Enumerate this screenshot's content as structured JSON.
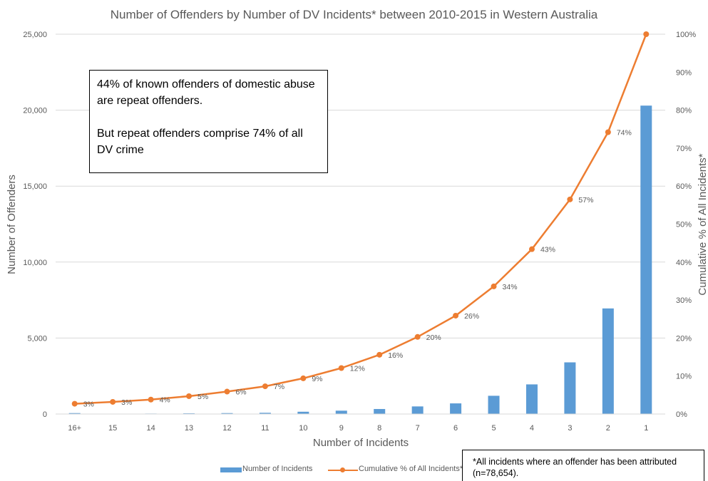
{
  "chart_data": {
    "type": "bar",
    "title": "Number of Offenders by Number of DV Incidents* between 2010-2015 in Western Australia",
    "xlabel": "Number of Incidents",
    "ylabel": "Number of Offenders",
    "y2label": "Cumulative % of All Incidents*",
    "categories": [
      "16+",
      "15",
      "14",
      "13",
      "12",
      "11",
      "10",
      "9",
      "8",
      "7",
      "6",
      "5",
      "4",
      "3",
      "2",
      "1"
    ],
    "series": [
      {
        "name": "Number of Incidents",
        "kind": "bar",
        "axis": "left",
        "color": "#5b9bd5",
        "values": [
          60,
          20,
          30,
          45,
          60,
          80,
          150,
          220,
          330,
          500,
          700,
          1200,
          1950,
          3400,
          6950,
          20300
        ]
      },
      {
        "name": "Cumulative % of All Incidents*",
        "kind": "line",
        "axis": "right",
        "color": "#ed7d31",
        "values": [
          2.7,
          3.2,
          3.8,
          4.7,
          5.9,
          7.3,
          9.4,
          12.1,
          15.6,
          20.3,
          25.9,
          33.6,
          43.4,
          56.5,
          74.2,
          100
        ],
        "labels": [
          "3%",
          "3%",
          "4%",
          "5%",
          "6%",
          "7%",
          "9%",
          "12%",
          "16%",
          "20%",
          "26%",
          "34%",
          "43%",
          "57%",
          "74%",
          ""
        ]
      }
    ],
    "ylim": [
      0,
      25000
    ],
    "yticks": [
      0,
      5000,
      10000,
      15000,
      20000,
      25000
    ],
    "ytick_labels": [
      "0",
      "5,000",
      "10,000",
      "15,000",
      "20,000",
      "25,000"
    ],
    "y2lim": [
      0,
      100
    ],
    "y2ticks": [
      0,
      10,
      20,
      30,
      40,
      50,
      60,
      70,
      80,
      90,
      100
    ],
    "y2tick_labels": [
      "0%",
      "10%",
      "20%",
      "30%",
      "40%",
      "50%",
      "60%",
      "70%",
      "80%",
      "90%",
      "100%"
    ],
    "grid": true,
    "legend_position": "bottom",
    "annotations": {
      "callout_line1": "44% of known offenders of domestic abuse are repeat offenders.",
      "callout_line2": "But repeat offenders comprise 74% of all DV crime",
      "footnote": "*All incidents where an offender has been attributed (n=78,654)."
    }
  },
  "colors": {
    "bar": "#5b9bd5",
    "line": "#ed7d31",
    "grid": "#d9d9d9",
    "text": "#595959"
  }
}
